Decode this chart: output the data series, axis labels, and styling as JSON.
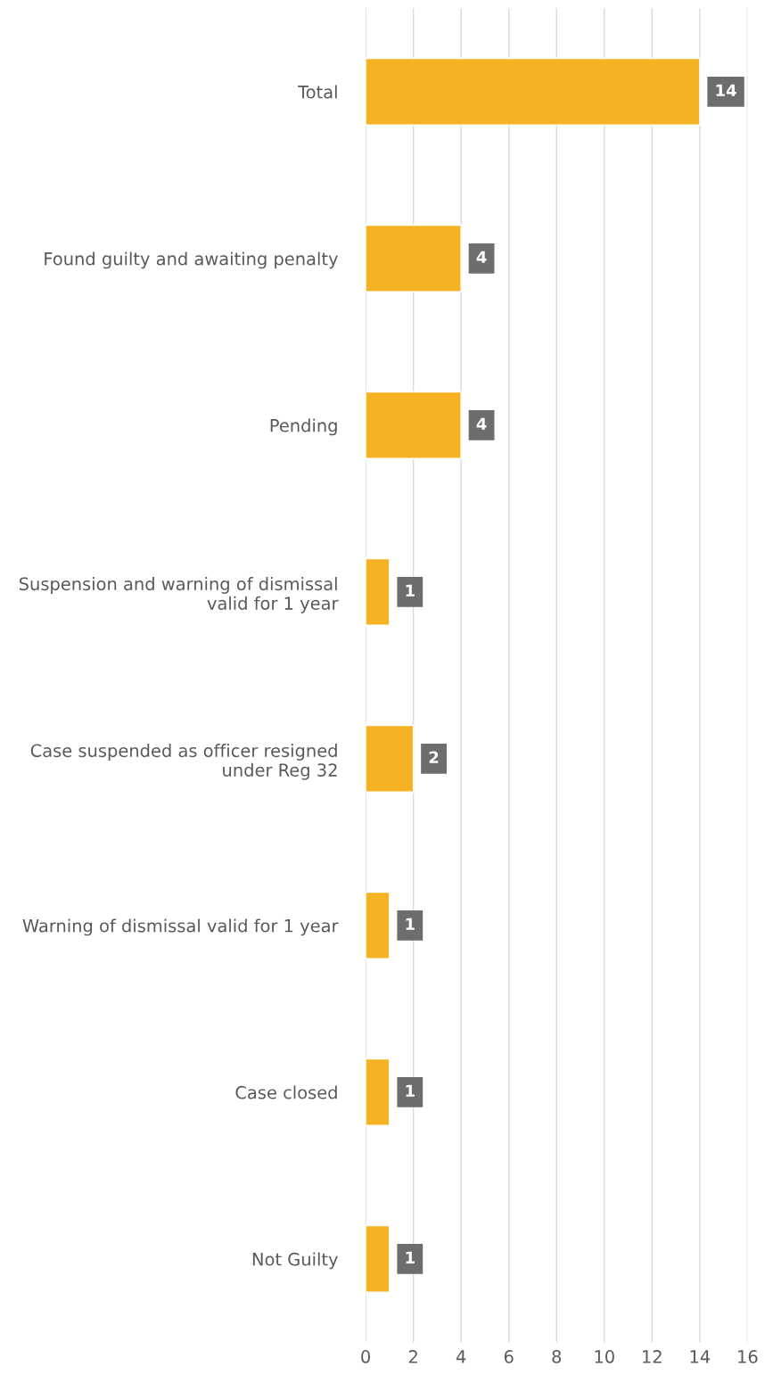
{
  "chart_data": {
    "type": "bar",
    "orientation": "horizontal",
    "categories": [
      "Total",
      "Found guilty and awaiting penalty",
      "Pending",
      "Suspension and warning of dismissal\nvalid for 1 year",
      "Case suspended as officer resigned\nunder Reg 32",
      "Warning of dismissal valid for 1 year",
      "Case closed",
      "Not Guilty"
    ],
    "values": [
      14,
      4,
      4,
      1,
      2,
      1,
      1,
      1
    ],
    "color": "#f5b223",
    "xlim": [
      0,
      16
    ],
    "xticks": [
      0,
      2,
      4,
      6,
      8,
      10,
      12,
      14,
      16
    ],
    "grid": "x",
    "data_labels": true,
    "legend": false
  }
}
